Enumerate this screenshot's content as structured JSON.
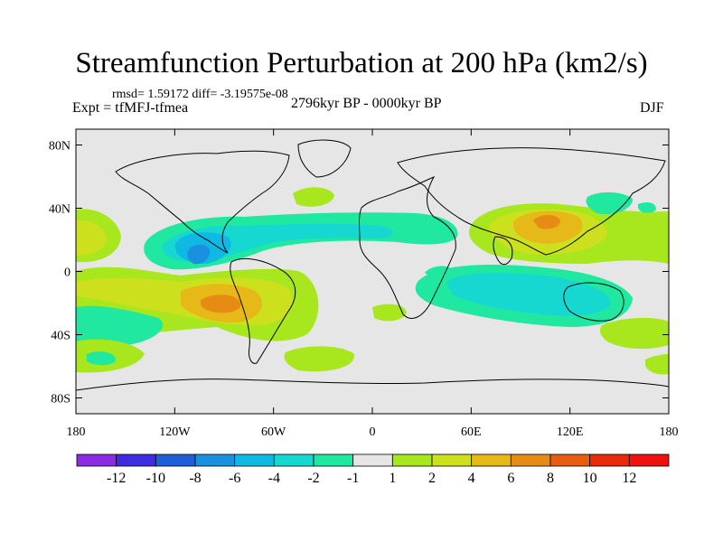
{
  "header": {
    "title": "Streamfunction Perturbation at 200 hPa (km2/s)",
    "stats": "rmsd= 1.59172 diff= -3.19575e-08",
    "experiment": "Expt = tfMFJ-tfmea",
    "period": "2796kyr BP - 0000kyr BP",
    "season": "DJF"
  },
  "map": {
    "projection": "cylindrical-equidistant",
    "lon_range": [
      -180,
      180
    ],
    "lat_range": [
      -90,
      90
    ],
    "lat_ticks": [
      {
        "value": 80,
        "label": "80N"
      },
      {
        "value": 40,
        "label": "40N"
      },
      {
        "value": 0,
        "label": "0"
      },
      {
        "value": -40,
        "label": "40S"
      },
      {
        "value": -80,
        "label": "80S"
      }
    ],
    "lon_ticks": [
      {
        "value": -180,
        "label": "180"
      },
      {
        "value": -120,
        "label": "120W"
      },
      {
        "value": -60,
        "label": "60W"
      },
      {
        "value": 0,
        "label": "0"
      },
      {
        "value": 60,
        "label": "60E"
      },
      {
        "value": 120,
        "label": "120E"
      },
      {
        "value": 180,
        "label": "180"
      }
    ],
    "background_color": "#e6e6e6"
  },
  "chart_data": {
    "type": "heatmap",
    "title": "Streamfunction Perturbation at 200 hPa (km2/s)",
    "units": "km2/s",
    "colorbar": {
      "labels": [
        "-12",
        "-10",
        "-8",
        "-6",
        "-4",
        "-2",
        "-1",
        "1",
        "2",
        "4",
        "6",
        "8",
        "10",
        "12"
      ],
      "colors": [
        "#8b2be2",
        "#3e2ce0",
        "#1e5fd8",
        "#1a90e0",
        "#10b8e4",
        "#16d8d0",
        "#20e8a0",
        "#e6e6e6",
        "#a8e61e",
        "#cce01e",
        "#e6b818",
        "#e68c14",
        "#e65c10",
        "#e62a0a",
        "#f01010"
      ]
    },
    "regions": [
      {
        "sign": "positive",
        "level": "4",
        "lon": -98,
        "lat": -22,
        "description": "South-east Pacific high (max ~8)"
      },
      {
        "sign": "positive",
        "level": "6",
        "lon": 105,
        "lat": 24,
        "description": "South/East Asia high"
      },
      {
        "sign": "positive",
        "level": "2",
        "lon": -175,
        "lat": 25,
        "description": "Central North Pacific"
      },
      {
        "sign": "positive",
        "level": "1",
        "lon": -30,
        "lat": 45,
        "description": "North Atlantic"
      },
      {
        "sign": "positive",
        "level": "1",
        "lon": 160,
        "lat": -35,
        "description": "South-west Pacific"
      },
      {
        "sign": "negative",
        "level": "-4",
        "lon": -105,
        "lat": 10,
        "description": "Tropical eastern Pacific / Americas low"
      },
      {
        "sign": "negative",
        "level": "-2",
        "lon": 90,
        "lat": -22,
        "description": "Indian Ocean / Australia low"
      },
      {
        "sign": "negative",
        "level": "-1",
        "lon": -40,
        "lat": 25,
        "description": "Tropical Atlantic / Africa band"
      },
      {
        "sign": "negative",
        "level": "-1",
        "lon": 150,
        "lat": 45,
        "description": "North-west Pacific"
      },
      {
        "sign": "negative",
        "level": "-1",
        "lon": -170,
        "lat": -45,
        "description": "South Pacific"
      }
    ]
  }
}
